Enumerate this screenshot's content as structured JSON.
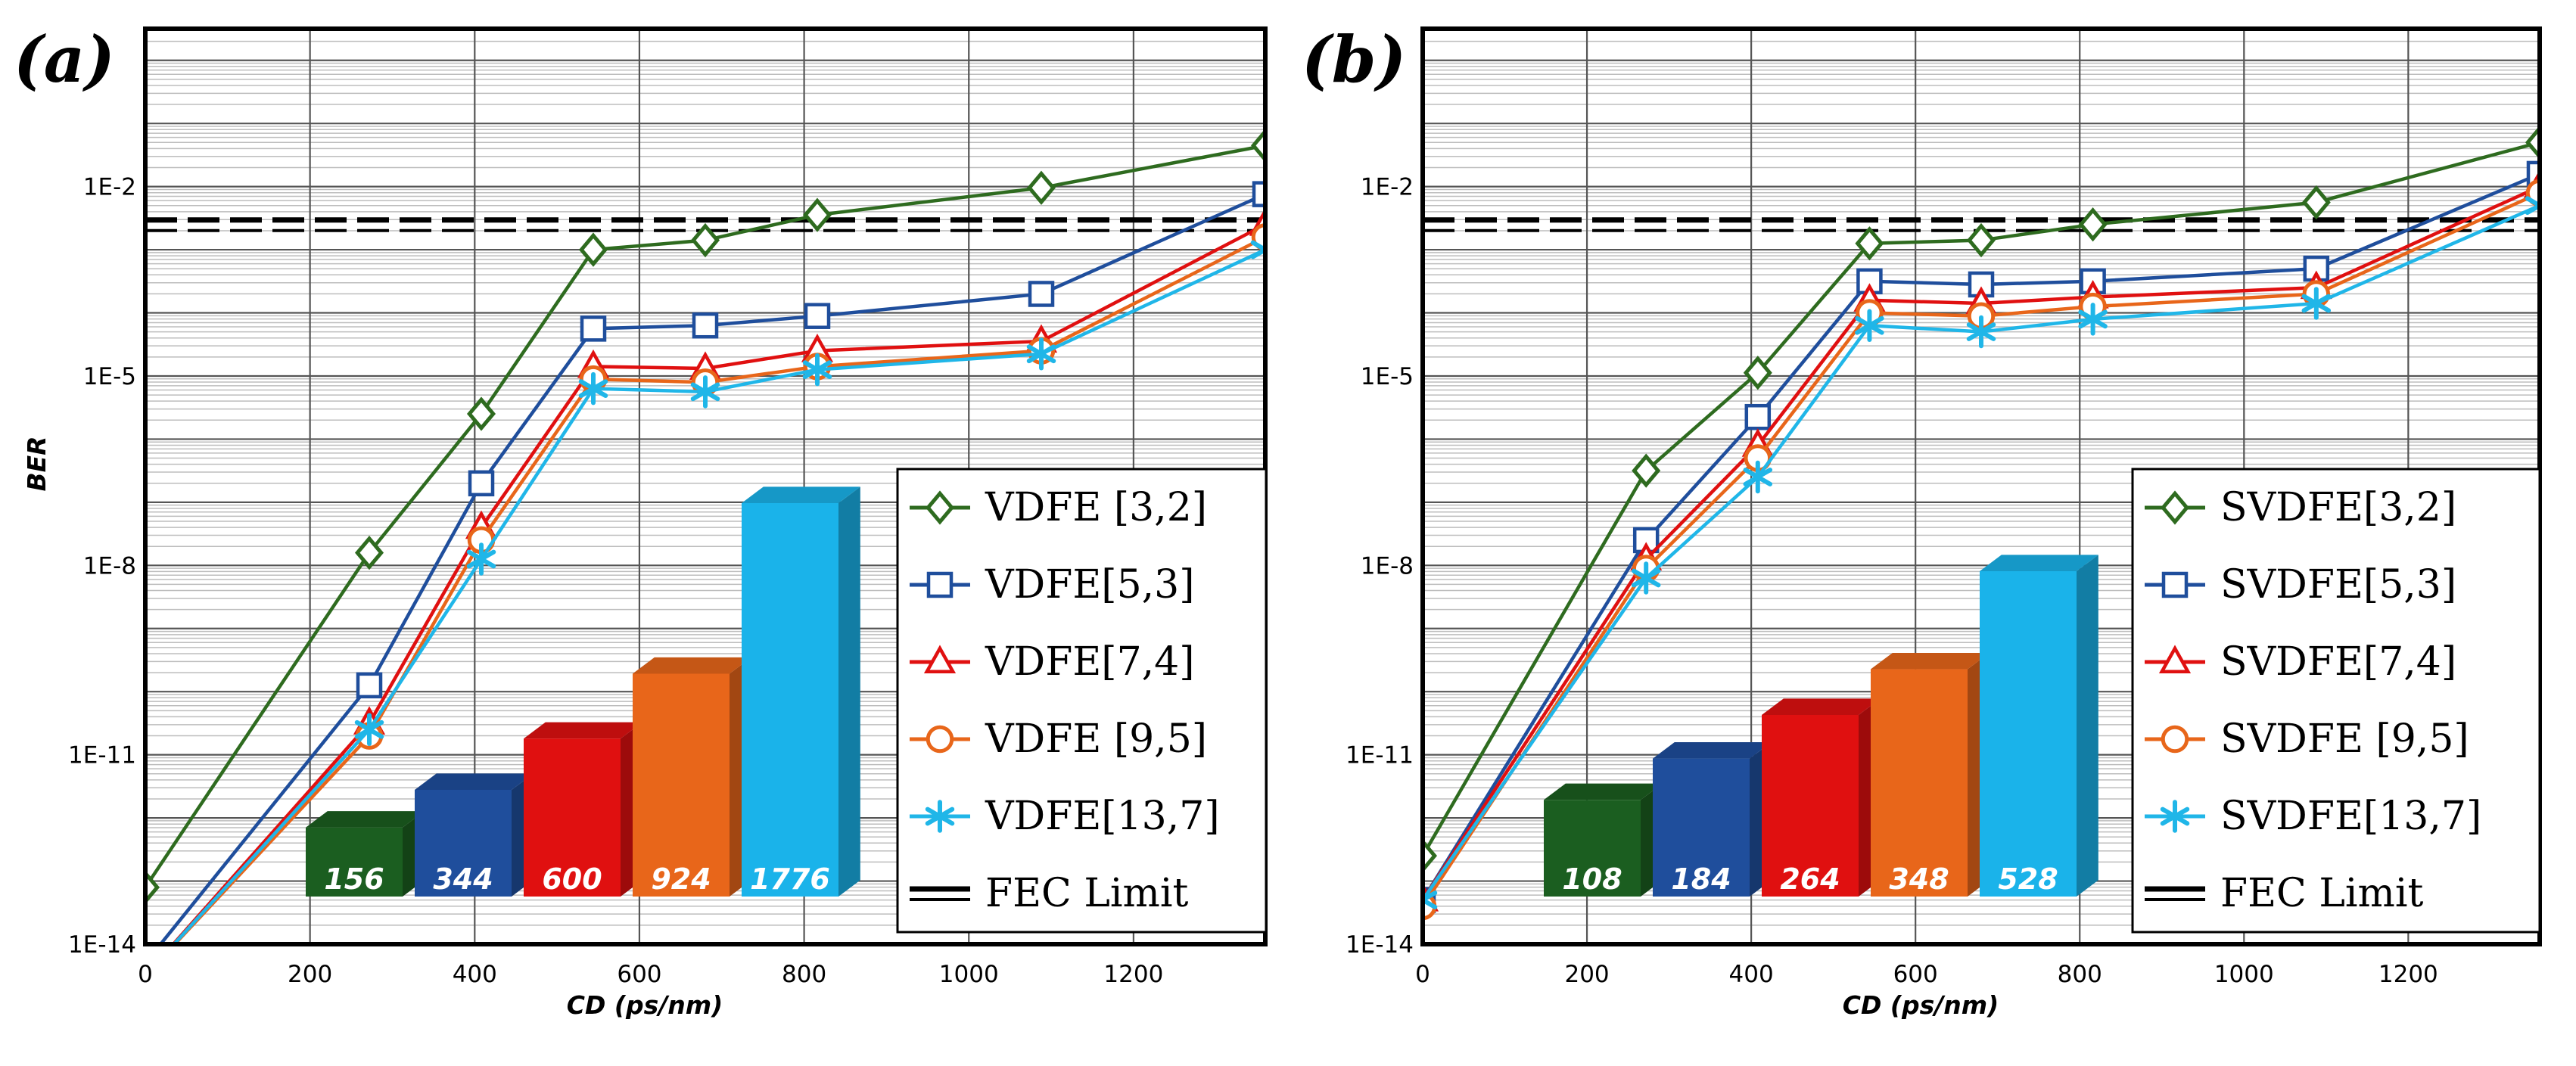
{
  "chart_data": [
    {
      "type": "line",
      "panel_label": "(a)",
      "xlabel": "CD (ps/nm)",
      "ylabel": "BER",
      "x_ticks": [
        "0",
        "200",
        "400",
        "600",
        "800",
        "1000",
        "1200"
      ],
      "y_ticks": [
        "1E-2",
        "1E-5",
        "1E-8",
        "1E-11",
        "1E-14"
      ],
      "xlim": [
        0,
        1360
      ],
      "ylim_log10": [
        -14,
        0.5
      ],
      "y_scale": "log",
      "grid": true,
      "legend_position": "bottom-right",
      "series": [
        {
          "name": "VDFE [3,2]",
          "color": "#2e6b1f",
          "marker": "diamond",
          "x": [
            0,
            272,
            408,
            544,
            680,
            816,
            1088,
            1360
          ],
          "y": [
            "1E-13.1",
            "1E-7.8",
            "1E-5.6",
            "1E-3.0",
            "1E-2.85",
            "1E-2.45",
            "1E-2.02",
            "1E-1.35"
          ]
        },
        {
          "name": "VDFE[5,3]",
          "color": "#1f4e9c",
          "marker": "square",
          "x": [
            0,
            272,
            408,
            544,
            680,
            816,
            1088,
            1360
          ],
          "y": [
            "1E-14.3",
            "1E-9.9",
            "1E-6.7",
            "1E-4.25",
            "1E-4.2",
            "1E-4.05",
            "1E-3.7",
            "1E-2.12"
          ]
        },
        {
          "name": "VDFE[7,4]",
          "color": "#e01010",
          "marker": "triangle",
          "x": [
            0,
            272,
            408,
            544,
            680,
            816,
            1088,
            1360
          ],
          "y": [
            "1E-14.5",
            "1E-10.5",
            "1E-7.4",
            "1E-4.85",
            "1E-4.88",
            "1E-4.6",
            "1E-4.45",
            "1E-2.6"
          ]
        },
        {
          "name": "VDFE [9,5]",
          "color": "#e8661a",
          "marker": "circle",
          "x": [
            0,
            272,
            408,
            544,
            680,
            816,
            1088,
            1360
          ],
          "y": [
            "1E-14.5",
            "1E-10.7",
            "1E-7.6",
            "1E-5.05",
            "1E-5.1",
            "1E-4.85",
            "1E-4.6",
            "1E-2.8"
          ]
        },
        {
          "name": "VDFE[13,7]",
          "color": "#20b6e8",
          "marker": "star",
          "x": [
            0,
            272,
            408,
            544,
            680,
            816,
            1088,
            1360
          ],
          "y": [
            "1E-14.5",
            "1E-10.6",
            "1E-7.9",
            "1E-5.2",
            "1E-5.25",
            "1E-4.9",
            "1E-4.65",
            "1E-3.0"
          ]
        }
      ],
      "fec_limit": {
        "name": "FEC Limit",
        "y_log10": -2.6
      },
      "inset_bars": {
        "values": [
          156,
          344,
          600,
          924,
          1776
        ],
        "colors": [
          "#1b5e20",
          "#1f4e9c",
          "#e01010",
          "#e8661a",
          "#1ab3ea"
        ]
      }
    },
    {
      "type": "line",
      "panel_label": "(b)",
      "xlabel": "CD (ps/nm)",
      "ylabel": "",
      "x_ticks": [
        "0",
        "200",
        "400",
        "600",
        "800",
        "1000",
        "1200"
      ],
      "y_ticks": [
        "1E-2",
        "1E-5",
        "1E-8",
        "1E-11",
        "1E-14"
      ],
      "xlim": [
        0,
        1360
      ],
      "ylim_log10": [
        -14,
        0.5
      ],
      "y_scale": "log",
      "grid": true,
      "legend_position": "bottom-right",
      "series": [
        {
          "name": "SVDFE[3,2]",
          "color": "#2e6b1f",
          "marker": "diamond",
          "x": [
            0,
            272,
            408,
            544,
            680,
            816,
            1088,
            1360
          ],
          "y": [
            "1E-12.6",
            "1E-6.5",
            "1E-4.95",
            "1E-2.9",
            "1E-2.85",
            "1E-2.6",
            "1E-2.25",
            "1E-1.3"
          ]
        },
        {
          "name": "SVDFE[5,3]",
          "color": "#1f4e9c",
          "marker": "square",
          "x": [
            0,
            272,
            408,
            544,
            680,
            816,
            1088,
            1360
          ],
          "y": [
            "1E-13.3",
            "1E-7.6",
            "1E-5.65",
            "1E-3.5",
            "1E-3.55",
            "1E-3.5",
            "1E-3.3",
            "1E-1.8"
          ]
        },
        {
          "name": "SVDFE[7,4]",
          "color": "#e01010",
          "marker": "triangle",
          "x": [
            0,
            272,
            408,
            544,
            680,
            816,
            1088,
            1360
          ],
          "y": [
            "1E-13.3",
            "1E-7.9",
            "1E-6.1",
            "1E-3.8",
            "1E-3.85",
            "1E-3.75",
            "1E-3.6",
            "1E-2.0"
          ]
        },
        {
          "name": "SVDFE [9,5]",
          "color": "#e8661a",
          "marker": "circle",
          "x": [
            0,
            272,
            408,
            544,
            680,
            816,
            1088,
            1360
          ],
          "y": [
            "1E-13.4",
            "1E-8.05",
            "1E-6.3",
            "1E-4.0",
            "1E-4.05",
            "1E-3.9",
            "1E-3.7",
            "1E-2.1"
          ]
        },
        {
          "name": "SVDFE[13,7]",
          "color": "#20b6e8",
          "marker": "star",
          "x": [
            0,
            272,
            408,
            544,
            680,
            816,
            1088,
            1360
          ],
          "y": [
            "1E-13.3",
            "1E-8.2",
            "1E-6.6",
            "1E-4.2",
            "1E-4.3",
            "1E-4.1",
            "1E-3.85",
            "1E-2.3"
          ]
        }
      ],
      "fec_limit": {
        "name": "FEC Limit",
        "y_log10": -2.6
      },
      "inset_bars": {
        "values": [
          108,
          184,
          264,
          348,
          528
        ],
        "colors": [
          "#1b5e20",
          "#1f4e9c",
          "#e01010",
          "#e8661a",
          "#1ab3ea"
        ]
      }
    }
  ]
}
